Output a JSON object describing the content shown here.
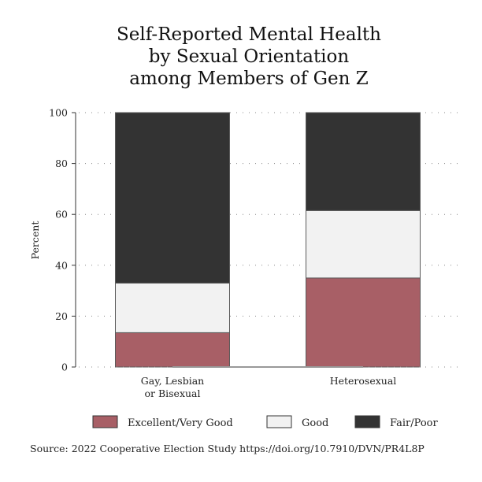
{
  "chart_data": {
    "type": "bar",
    "stacked": true,
    "title": [
      "Self-Reported Mental Health",
      "by Sexual Orientation",
      "among Members of Gen Z"
    ],
    "categories": [
      [
        "Gay, Lesbian",
        "or Bisexual"
      ],
      [
        "Heterosexual"
      ]
    ],
    "series": [
      {
        "name": "Excellent/Very Good",
        "color": "#a85f66",
        "values": [
          13.5,
          35
        ]
      },
      {
        "name": "Good",
        "color": "#f2f2f2",
        "values": [
          19.5,
          26.5
        ]
      },
      {
        "name": "Fair/Poor",
        "color": "#333333",
        "values": [
          67,
          38.5
        ]
      }
    ],
    "ylabel": "Percent",
    "xlabel": "",
    "ylim": [
      0,
      100
    ],
    "yticks": [
      0,
      20,
      40,
      60,
      80,
      100
    ],
    "grid": true,
    "legend": "bottom",
    "source": "Source: 2022 Cooperative Election Study https://doi.org/10.7910/DVN/PR4L8P"
  }
}
